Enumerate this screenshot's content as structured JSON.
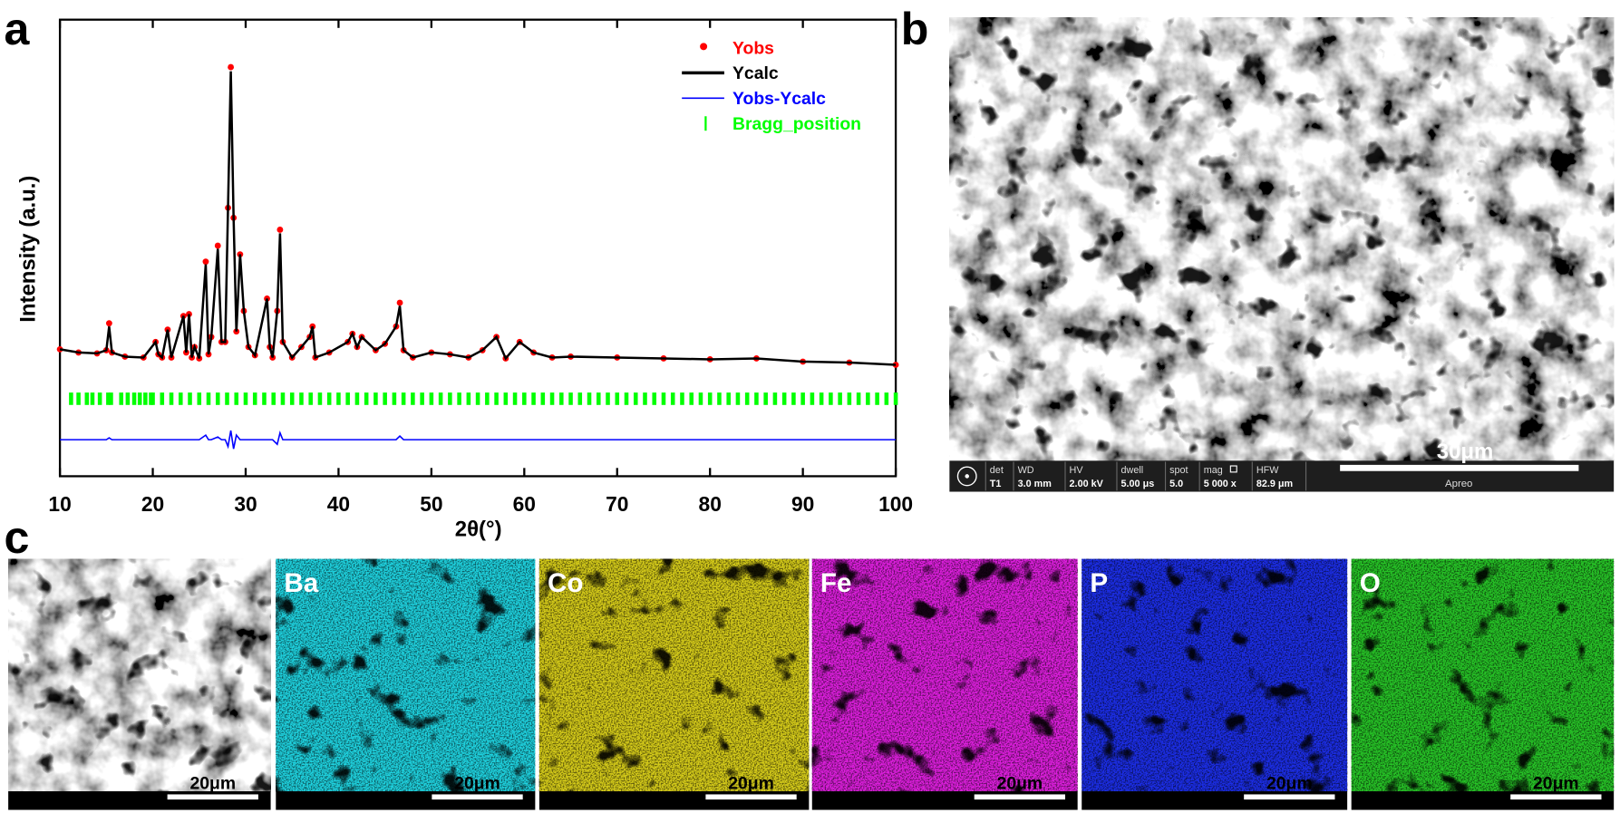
{
  "panel_labels": [
    "a",
    "b",
    "c"
  ],
  "chart_data": {
    "type": "line",
    "x_label": "2θ(°)",
    "y_label": "Intensity (a.u.)",
    "xlim": [
      10,
      100
    ],
    "xticks": [
      10,
      20,
      30,
      40,
      50,
      60,
      70,
      80,
      90,
      100
    ],
    "ylim": [
      0,
      100
    ],
    "x": [
      10,
      12,
      14,
      15,
      15.3,
      15.6,
      17,
      19,
      20.3,
      20.6,
      21,
      21.6,
      22,
      23.3,
      23.6,
      23.9,
      24.2,
      24.5,
      25,
      25.7,
      26,
      26.3,
      27,
      27.4,
      27.8,
      28.1,
      28.4,
      28.7,
      29,
      29.4,
      29.8,
      30.3,
      31,
      32.3,
      32.6,
      32.9,
      33.4,
      33.7,
      34,
      35,
      36,
      36.9,
      37.2,
      37.5,
      39,
      41,
      41.5,
      42,
      42.5,
      44,
      45,
      46.2,
      46.6,
      47,
      48,
      50,
      52,
      54,
      55.5,
      57,
      58,
      59.5,
      61,
      63,
      65,
      70,
      75,
      80,
      85,
      90,
      95,
      100
    ],
    "series": [
      {
        "name": "Yobs",
        "color": "#ff0000",
        "marker": "dot",
        "values": [
          27.8,
          27.1,
          26.9,
          27.6,
          33.5,
          27.1,
          26.2,
          26.0,
          29.4,
          26.7,
          26.0,
          32.1,
          26.0,
          35.1,
          27.1,
          35.5,
          26.0,
          28.3,
          25.8,
          47,
          26.7,
          30.5,
          50.5,
          29.4,
          29.4,
          58.8,
          89.6,
          56.6,
          31.7,
          48.6,
          36.2,
          28.3,
          26.5,
          38.9,
          28.3,
          26.0,
          36.2,
          54,
          29.4,
          26.0,
          28.3,
          30.5,
          32.8,
          26.0,
          27.1,
          29.4,
          31.2,
          28.3,
          30.5,
          27.6,
          29.0,
          32.8,
          38,
          27.6,
          26.0,
          27.1,
          26.7,
          26.0,
          27.6,
          30.5,
          25.8,
          29.4,
          27.1,
          26.0,
          26.2,
          26.0,
          25.8,
          25.6,
          25.8,
          25.1,
          24.9,
          24.4
        ]
      },
      {
        "name": "Ycalc",
        "color": "#000000",
        "values": [
          27.8,
          27.1,
          26.9,
          27.6,
          32.8,
          27.1,
          26.2,
          26.0,
          29.4,
          26.7,
          26.0,
          32.1,
          26.0,
          35.1,
          27.1,
          35.5,
          26.0,
          28.3,
          25.8,
          46.4,
          26.7,
          30.5,
          49.8,
          29.4,
          29.4,
          58.8,
          88.7,
          56.6,
          31.7,
          48.6,
          36.2,
          28.3,
          26.5,
          38.9,
          28.3,
          26.0,
          36.2,
          53.2,
          29.4,
          26.0,
          28.3,
          30.5,
          32.8,
          26.0,
          27.1,
          29.4,
          31.2,
          28.3,
          30.5,
          27.6,
          29.0,
          32.8,
          37.3,
          27.6,
          26.0,
          27.1,
          26.7,
          26.0,
          27.6,
          30.5,
          25.8,
          29.4,
          27.1,
          26.0,
          26.2,
          26.0,
          25.8,
          25.6,
          25.8,
          25.1,
          24.9,
          24.4
        ]
      },
      {
        "name": "Yobs-Ycalc",
        "color": "#0000ff",
        "values": [
          8,
          8,
          8,
          8,
          8.4,
          8,
          8,
          8,
          8,
          8,
          8,
          8,
          8,
          8,
          8,
          8,
          8,
          8,
          8,
          9,
          8,
          8,
          8.6,
          8,
          8,
          6.5,
          10,
          6,
          9,
          8,
          8,
          8,
          8,
          8,
          8,
          8,
          7,
          9.5,
          8,
          8,
          8,
          8,
          8,
          8,
          8,
          8,
          8,
          8,
          8,
          8,
          8,
          8,
          8.8,
          8,
          8,
          8,
          8,
          8,
          8,
          8,
          8,
          8,
          8,
          8,
          8,
          8,
          8,
          8,
          8,
          8,
          8,
          8
        ]
      },
      {
        "name": "Bragg_position",
        "color": "#00ff00",
        "positions": [
          11.2,
          12,
          12.9,
          13.5,
          14.3,
          15.2,
          15.5,
          16.6,
          17.3,
          18,
          18.6,
          19.2,
          19.8,
          20,
          21,
          22,
          23,
          24,
          25,
          26,
          27,
          28,
          29,
          30,
          31,
          32,
          33,
          34,
          35,
          36,
          37,
          38,
          39,
          40,
          41,
          42,
          43,
          44,
          45,
          46,
          47,
          48,
          49,
          50,
          51,
          52,
          53,
          54,
          55,
          56,
          57,
          58,
          59,
          60,
          61,
          62,
          63,
          64,
          65,
          66,
          67,
          68,
          69,
          70,
          71,
          72,
          73,
          74,
          75,
          76,
          77,
          78,
          79,
          80,
          81,
          82,
          83,
          84,
          85,
          86,
          87,
          88,
          89,
          90,
          91,
          92,
          93,
          94,
          95,
          96,
          97,
          98,
          99,
          100
        ]
      }
    ]
  },
  "sem_b": {
    "scale_bar": "30μm",
    "info_bar": [
      {
        "label": "det",
        "value": "T1"
      },
      {
        "label": "WD",
        "value": "3.0 mm"
      },
      {
        "label": "HV",
        "value": "2.00 kV"
      },
      {
        "label": "dwell",
        "value": "5.00 μs"
      },
      {
        "label": "spot",
        "value": "5.0"
      },
      {
        "label": "mag",
        "value": "5 000 x"
      },
      {
        "label": "HFW",
        "value": "82.9 μm"
      }
    ],
    "instrument": "Apreo"
  },
  "panel_c": {
    "sem_scale_bar": "20μm",
    "maps": [
      {
        "label": "Ba",
        "color": "#1fd2df",
        "scale_bar": "20μm"
      },
      {
        "label": "Co",
        "color": "#d6cc1a",
        "scale_bar": "20μm"
      },
      {
        "label": "Fe",
        "color": "#dd1fdd",
        "scale_bar": "20μm"
      },
      {
        "label": "P",
        "color": "#1c2ee6",
        "scale_bar": "20μm"
      },
      {
        "label": "O",
        "color": "#27c427",
        "scale_bar": "20μm"
      }
    ]
  }
}
